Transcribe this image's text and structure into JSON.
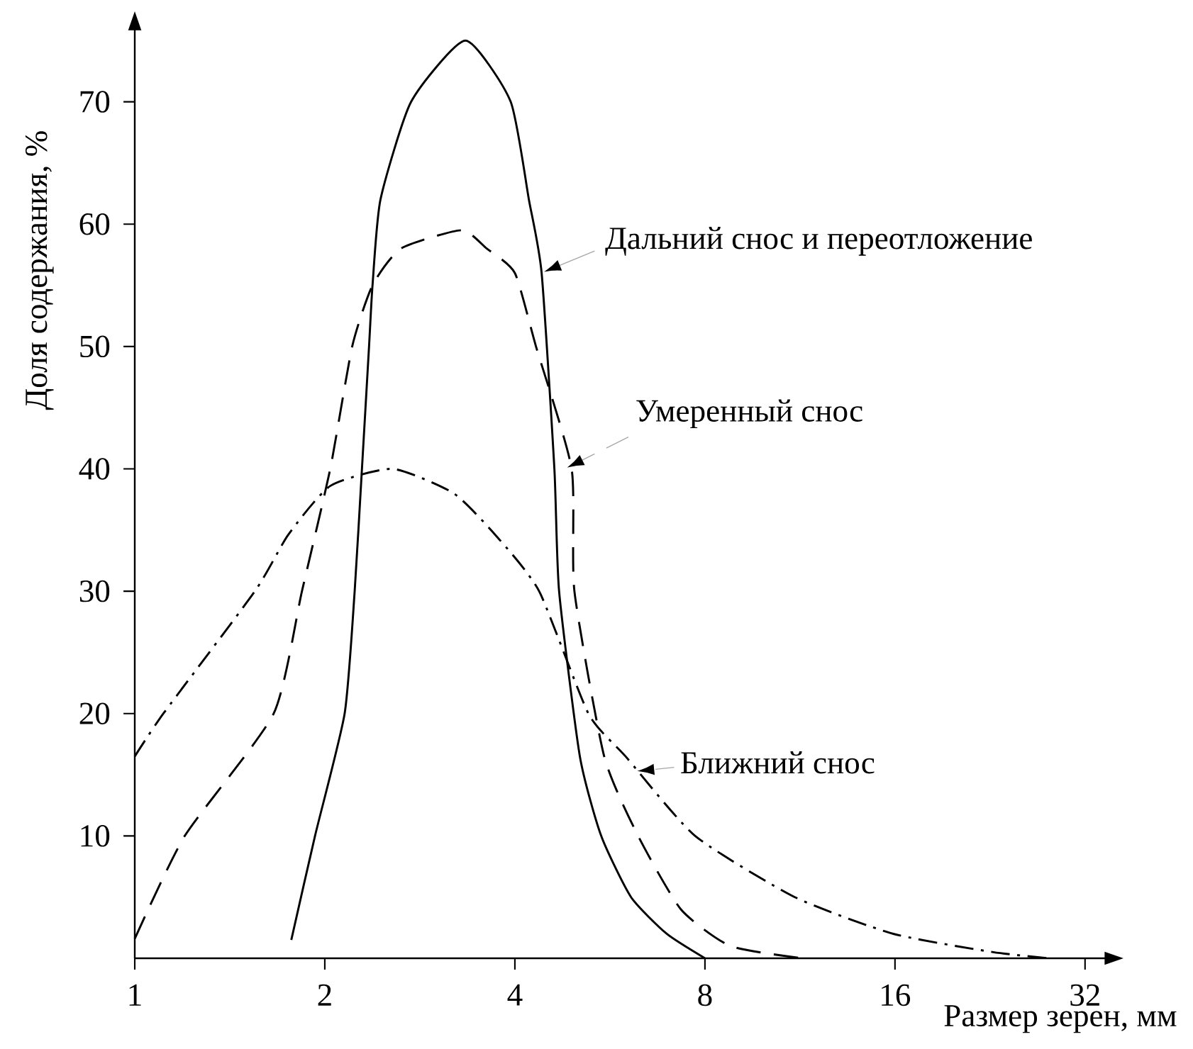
{
  "chart_data": {
    "type": "line",
    "xlabel": "Размер зерен, мм",
    "ylabel": "Доля содержания, %",
    "log": "x",
    "xlim": [
      1,
      34.6
    ],
    "ylim": [
      0,
      76
    ],
    "xticks": [
      1,
      2,
      4,
      8,
      16,
      32
    ],
    "yticks": [
      10,
      20,
      30,
      40,
      50,
      60,
      70
    ],
    "series": [
      {
        "name": "Дальний снос и переотложение",
        "color": "#000000",
        "line_style": "solid",
        "x": [
          1.77,
          1.93,
          2.15,
          2.23,
          2.29,
          2.35,
          2.38,
          2.45,
          2.74,
          3.34,
          3.94,
          4.21,
          4.41,
          4.62,
          4.7,
          5.07,
          5.48,
          6.11,
          6.96,
          8
        ],
        "values": [
          1.5,
          10,
          20,
          30,
          40,
          50,
          55,
          62,
          70,
          75,
          70,
          62,
          56,
          40,
          30,
          16.5,
          10,
          5,
          2,
          0
        ]
      },
      {
        "name": "Умеренный снос",
        "color": "#000000",
        "line_style": "dashed",
        "x": [
          1,
          1.2,
          1.66,
          1.84,
          2.04,
          2.21,
          2.38,
          2.64,
          3.29,
          3.61,
          4.0,
          4.32,
          4.92,
          4.97,
          5.54,
          6.27,
          7.33,
          8.78,
          11.4
        ],
        "values": [
          1.6,
          10,
          20,
          30,
          40,
          50,
          55,
          58,
          59.5,
          58,
          56,
          50,
          40,
          30,
          16.5,
          10,
          4,
          1,
          0
        ]
      },
      {
        "name": "Ближний снос",
        "color": "#000000",
        "line_style": "dashdot",
        "x": [
          1,
          1.11,
          1.55,
          1.75,
          2.04,
          2.56,
          3.2,
          3.74,
          4.37,
          5.23,
          5.99,
          7.72,
          11.1,
          15.9,
          22.9,
          28.1
        ],
        "values": [
          16.5,
          20,
          30,
          34.6,
          38.6,
          40,
          38,
          34.5,
          30,
          20,
          16.5,
          10,
          5,
          2,
          0.5,
          0
        ]
      }
    ]
  }
}
